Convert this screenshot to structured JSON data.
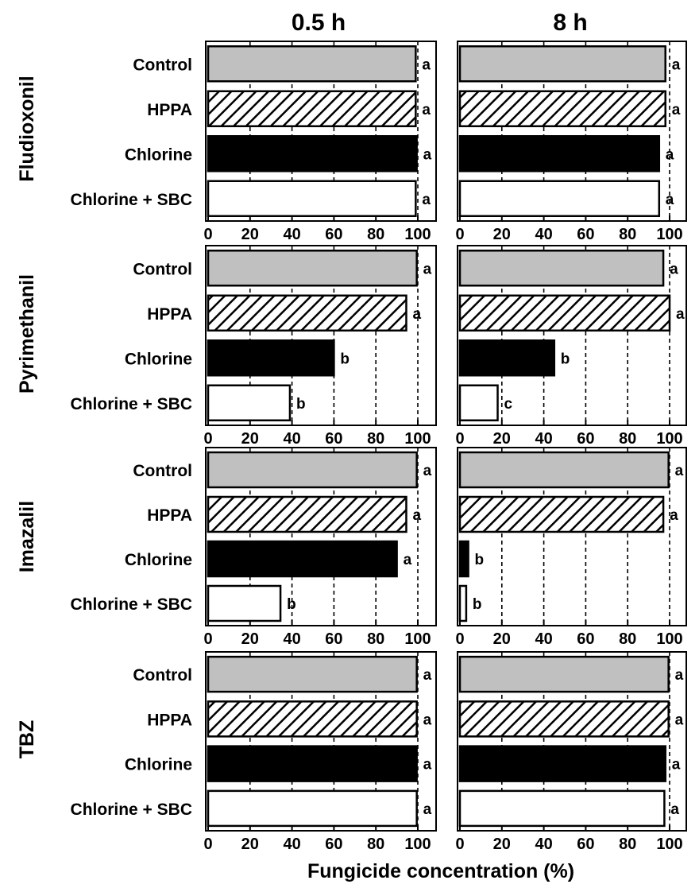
{
  "column_titles": [
    "0.5 h",
    "8 h"
  ],
  "row_titles": [
    "Fludioxonil",
    "Pyrimethanil",
    "Imazalil",
    "TBZ"
  ],
  "x_axis_label": "Fungicide concentration (%)",
  "colors": {
    "Control": "#c0c0c0",
    "HPPA": "hatched",
    "Chlorine": "#000000",
    "Chlorine + SBC": "#ffffff",
    "outline": "#000000"
  },
  "chart_data": {
    "type": "bar",
    "orientation": "horizontal",
    "categories": [
      "Control",
      "HPPA",
      "Chlorine",
      "Chlorine + SBC"
    ],
    "xlim": [
      0,
      100
    ],
    "xticks": [
      0,
      20,
      40,
      60,
      80,
      100
    ],
    "grid": "vertical dashed",
    "reference_line": 100,
    "panels": [
      {
        "fungicide": "Fludioxonil",
        "time": "0.5 h",
        "values": [
          99,
          99,
          99.5,
          99
        ],
        "letters": [
          "a",
          "a",
          "a",
          "a"
        ]
      },
      {
        "fungicide": "Fludioxonil",
        "time": "8 h",
        "values": [
          98,
          98,
          95,
          95
        ],
        "letters": [
          "a",
          "a",
          "a",
          "a"
        ]
      },
      {
        "fungicide": "Pyrimethanil",
        "time": "0.5 h",
        "values": [
          99.5,
          94.5,
          60,
          39
        ],
        "letters": [
          "a",
          "a",
          "b",
          "b"
        ]
      },
      {
        "fungicide": "Pyrimethanil",
        "time": "8 h",
        "values": [
          97,
          100,
          45,
          18
        ],
        "letters": [
          "a",
          "a",
          "b",
          "c"
        ]
      },
      {
        "fungicide": "Imazalil",
        "time": "0.5 h",
        "values": [
          99.5,
          94.5,
          90,
          34.5
        ],
        "letters": [
          "a",
          "a",
          "a",
          "b"
        ]
      },
      {
        "fungicide": "Imazalil",
        "time": "8 h",
        "values": [
          99.5,
          97,
          4,
          3
        ],
        "letters": [
          "a",
          "a",
          "b",
          "b"
        ]
      },
      {
        "fungicide": "TBZ",
        "time": "0.5 h",
        "values": [
          99.5,
          99.5,
          99.5,
          99.5
        ],
        "letters": [
          "a",
          "a",
          "a",
          "a"
        ]
      },
      {
        "fungicide": "TBZ",
        "time": "8 h",
        "values": [
          99.5,
          99.5,
          98,
          97.5
        ],
        "letters": [
          "a",
          "a",
          "a",
          "a"
        ]
      }
    ]
  }
}
